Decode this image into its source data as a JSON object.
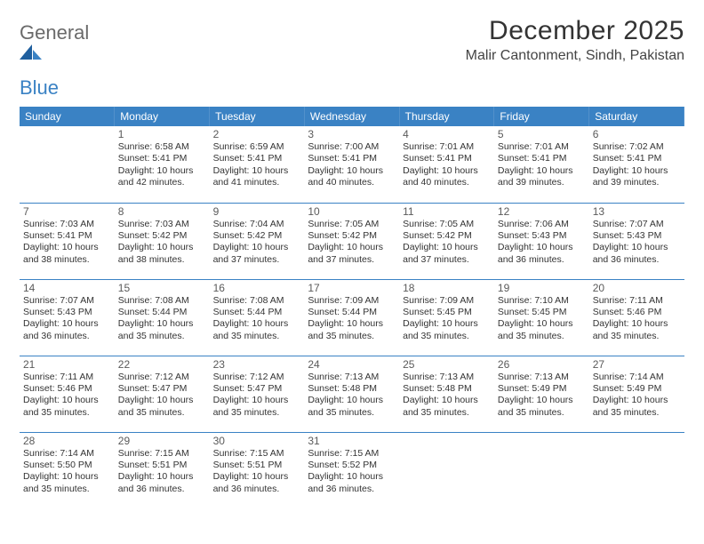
{
  "brand": {
    "part1": "General",
    "part2": "Blue"
  },
  "title": "December 2025",
  "location": "Malir Cantonment, Sindh, Pakistan",
  "colors": {
    "header_bg": "#3a82c4",
    "header_text": "#ffffff",
    "row_divider": "#3a82c4",
    "body_text": "#333333",
    "logo_gray": "#6a6a6a",
    "logo_blue": "#3a82c4"
  },
  "weekdays": [
    "Sunday",
    "Monday",
    "Tuesday",
    "Wednesday",
    "Thursday",
    "Friday",
    "Saturday"
  ],
  "start_offset": 1,
  "days": [
    {
      "n": 1,
      "sr": "6:58 AM",
      "ss": "5:41 PM",
      "dl": "10 hours and 42 minutes."
    },
    {
      "n": 2,
      "sr": "6:59 AM",
      "ss": "5:41 PM",
      "dl": "10 hours and 41 minutes."
    },
    {
      "n": 3,
      "sr": "7:00 AM",
      "ss": "5:41 PM",
      "dl": "10 hours and 40 minutes."
    },
    {
      "n": 4,
      "sr": "7:01 AM",
      "ss": "5:41 PM",
      "dl": "10 hours and 40 minutes."
    },
    {
      "n": 5,
      "sr": "7:01 AM",
      "ss": "5:41 PM",
      "dl": "10 hours and 39 minutes."
    },
    {
      "n": 6,
      "sr": "7:02 AM",
      "ss": "5:41 PM",
      "dl": "10 hours and 39 minutes."
    },
    {
      "n": 7,
      "sr": "7:03 AM",
      "ss": "5:41 PM",
      "dl": "10 hours and 38 minutes."
    },
    {
      "n": 8,
      "sr": "7:03 AM",
      "ss": "5:42 PM",
      "dl": "10 hours and 38 minutes."
    },
    {
      "n": 9,
      "sr": "7:04 AM",
      "ss": "5:42 PM",
      "dl": "10 hours and 37 minutes."
    },
    {
      "n": 10,
      "sr": "7:05 AM",
      "ss": "5:42 PM",
      "dl": "10 hours and 37 minutes."
    },
    {
      "n": 11,
      "sr": "7:05 AM",
      "ss": "5:42 PM",
      "dl": "10 hours and 37 minutes."
    },
    {
      "n": 12,
      "sr": "7:06 AM",
      "ss": "5:43 PM",
      "dl": "10 hours and 36 minutes."
    },
    {
      "n": 13,
      "sr": "7:07 AM",
      "ss": "5:43 PM",
      "dl": "10 hours and 36 minutes."
    },
    {
      "n": 14,
      "sr": "7:07 AM",
      "ss": "5:43 PM",
      "dl": "10 hours and 36 minutes."
    },
    {
      "n": 15,
      "sr": "7:08 AM",
      "ss": "5:44 PM",
      "dl": "10 hours and 35 minutes."
    },
    {
      "n": 16,
      "sr": "7:08 AM",
      "ss": "5:44 PM",
      "dl": "10 hours and 35 minutes."
    },
    {
      "n": 17,
      "sr": "7:09 AM",
      "ss": "5:44 PM",
      "dl": "10 hours and 35 minutes."
    },
    {
      "n": 18,
      "sr": "7:09 AM",
      "ss": "5:45 PM",
      "dl": "10 hours and 35 minutes."
    },
    {
      "n": 19,
      "sr": "7:10 AM",
      "ss": "5:45 PM",
      "dl": "10 hours and 35 minutes."
    },
    {
      "n": 20,
      "sr": "7:11 AM",
      "ss": "5:46 PM",
      "dl": "10 hours and 35 minutes."
    },
    {
      "n": 21,
      "sr": "7:11 AM",
      "ss": "5:46 PM",
      "dl": "10 hours and 35 minutes."
    },
    {
      "n": 22,
      "sr": "7:12 AM",
      "ss": "5:47 PM",
      "dl": "10 hours and 35 minutes."
    },
    {
      "n": 23,
      "sr": "7:12 AM",
      "ss": "5:47 PM",
      "dl": "10 hours and 35 minutes."
    },
    {
      "n": 24,
      "sr": "7:13 AM",
      "ss": "5:48 PM",
      "dl": "10 hours and 35 minutes."
    },
    {
      "n": 25,
      "sr": "7:13 AM",
      "ss": "5:48 PM",
      "dl": "10 hours and 35 minutes."
    },
    {
      "n": 26,
      "sr": "7:13 AM",
      "ss": "5:49 PM",
      "dl": "10 hours and 35 minutes."
    },
    {
      "n": 27,
      "sr": "7:14 AM",
      "ss": "5:49 PM",
      "dl": "10 hours and 35 minutes."
    },
    {
      "n": 28,
      "sr": "7:14 AM",
      "ss": "5:50 PM",
      "dl": "10 hours and 35 minutes."
    },
    {
      "n": 29,
      "sr": "7:15 AM",
      "ss": "5:51 PM",
      "dl": "10 hours and 36 minutes."
    },
    {
      "n": 30,
      "sr": "7:15 AM",
      "ss": "5:51 PM",
      "dl": "10 hours and 36 minutes."
    },
    {
      "n": 31,
      "sr": "7:15 AM",
      "ss": "5:52 PM",
      "dl": "10 hours and 36 minutes."
    }
  ],
  "labels": {
    "sunrise": "Sunrise:",
    "sunset": "Sunset:",
    "daylight": "Daylight:"
  }
}
